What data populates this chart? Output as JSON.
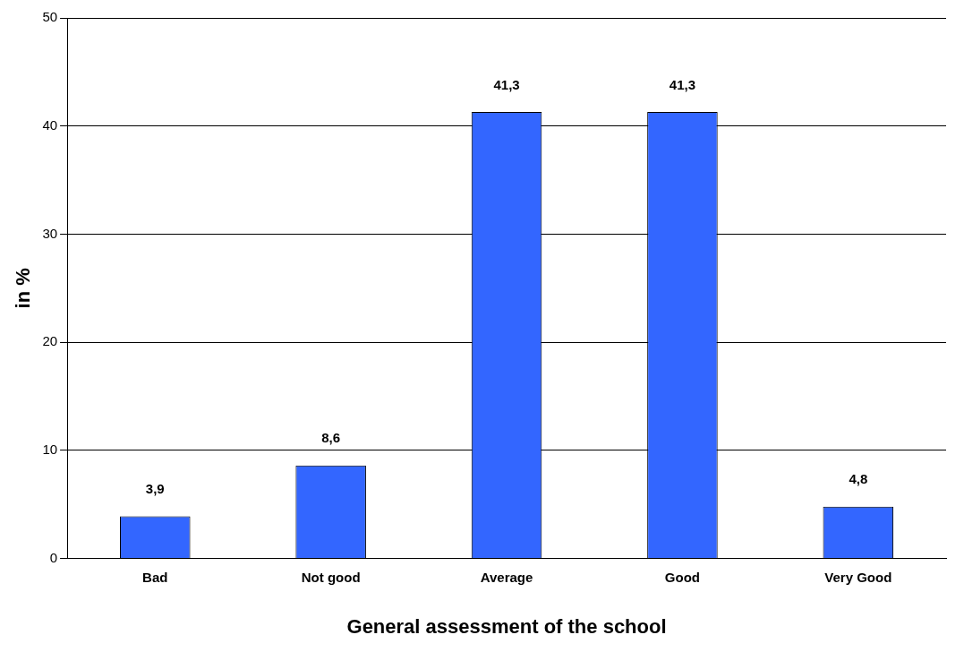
{
  "chart_data": {
    "type": "bar",
    "xlabel": "General assessment of the school",
    "ylabel": "in %",
    "categories": [
      "Bad",
      "Not good",
      "Average",
      "Good",
      "Very Good"
    ],
    "values": [
      3.9,
      8.6,
      41.3,
      41.3,
      4.8
    ],
    "value_labels": [
      "3,9",
      "8,6",
      "41,3",
      "41,3",
      "4,8"
    ],
    "color": "#3366ff",
    "ylim": [
      0,
      50
    ],
    "yticks": [
      0,
      10,
      20,
      30,
      40,
      50
    ],
    "grid": "y"
  }
}
